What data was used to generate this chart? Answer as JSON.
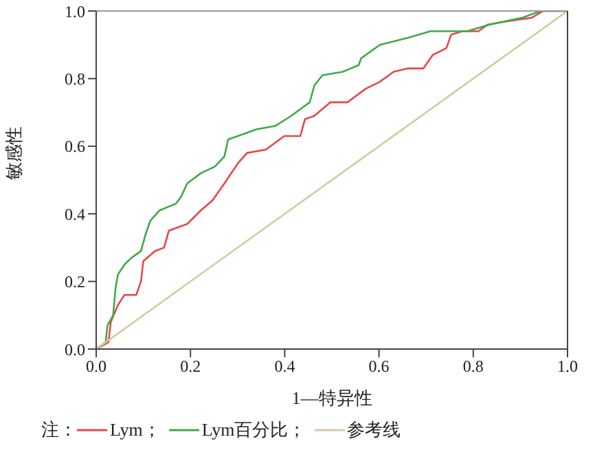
{
  "chart_data": {
    "type": "line",
    "xlabel": "1—特异性",
    "ylabel": "敏感性",
    "legend_title": "注：",
    "legend": "bottom left",
    "marker": "none",
    "xlim": [
      0,
      1
    ],
    "ylim": [
      0,
      1
    ],
    "xticks": [
      {
        "value": 0,
        "label": "0.0"
      },
      0.2,
      0.4,
      0.6,
      0.8,
      {
        "value": 1,
        "label": "1.0"
      }
    ],
    "yticks": [
      {
        "value": 0,
        "label": "0.0"
      },
      0.2,
      0.4,
      0.6,
      0.8,
      {
        "value": 1,
        "label": "1.0"
      }
    ],
    "series": [
      {
        "name": "Lym；",
        "color": "#e8474a",
        "x": [
          0,
          0.026,
          0.031,
          0.046,
          0.06,
          0.085,
          0.095,
          0.1,
          0.125,
          0.144,
          0.154,
          0.193,
          0.222,
          0.247,
          0.272,
          0.301,
          0.32,
          0.36,
          0.399,
          0.433,
          0.443,
          0.463,
          0.497,
          0.533,
          0.572,
          0.601,
          0.631,
          0.66,
          0.694,
          0.714,
          0.743,
          0.753,
          0.777,
          0.811,
          0.831,
          0.875,
          0.924,
          0.948,
          1
        ],
        "values": [
          0,
          0.02,
          0.08,
          0.13,
          0.16,
          0.16,
          0.2,
          0.26,
          0.29,
          0.3,
          0.35,
          0.37,
          0.41,
          0.44,
          0.49,
          0.55,
          0.58,
          0.59,
          0.63,
          0.63,
          0.68,
          0.69,
          0.73,
          0.73,
          0.77,
          0.79,
          0.82,
          0.83,
          0.83,
          0.87,
          0.89,
          0.93,
          0.94,
          0.94,
          0.96,
          0.97,
          0.98,
          1,
          1
        ]
      },
      {
        "name": "Lym百分比；",
        "color": "#3daa48",
        "x": [
          0,
          0.02,
          0.024,
          0.036,
          0.041,
          0.046,
          0.06,
          0.075,
          0.095,
          0.105,
          0.115,
          0.134,
          0.169,
          0.18,
          0.193,
          0.222,
          0.252,
          0.272,
          0.28,
          0.34,
          0.38,
          0.414,
          0.453,
          0.463,
          0.48,
          0.523,
          0.557,
          0.562,
          0.602,
          0.66,
          0.709,
          0.787,
          0.835,
          0.904,
          0.943,
          0.977,
          1
        ],
        "values": [
          0,
          0.02,
          0.07,
          0.1,
          0.18,
          0.22,
          0.25,
          0.27,
          0.29,
          0.34,
          0.38,
          0.41,
          0.43,
          0.45,
          0.49,
          0.52,
          0.54,
          0.57,
          0.62,
          0.65,
          0.66,
          0.69,
          0.73,
          0.78,
          0.81,
          0.82,
          0.84,
          0.86,
          0.9,
          0.92,
          0.94,
          0.94,
          0.96,
          0.98,
          1,
          1,
          1
        ]
      },
      {
        "name": "参考线",
        "color": "#d3caa0",
        "x": [
          0,
          1
        ],
        "values": [
          0,
          1
        ]
      }
    ]
  }
}
